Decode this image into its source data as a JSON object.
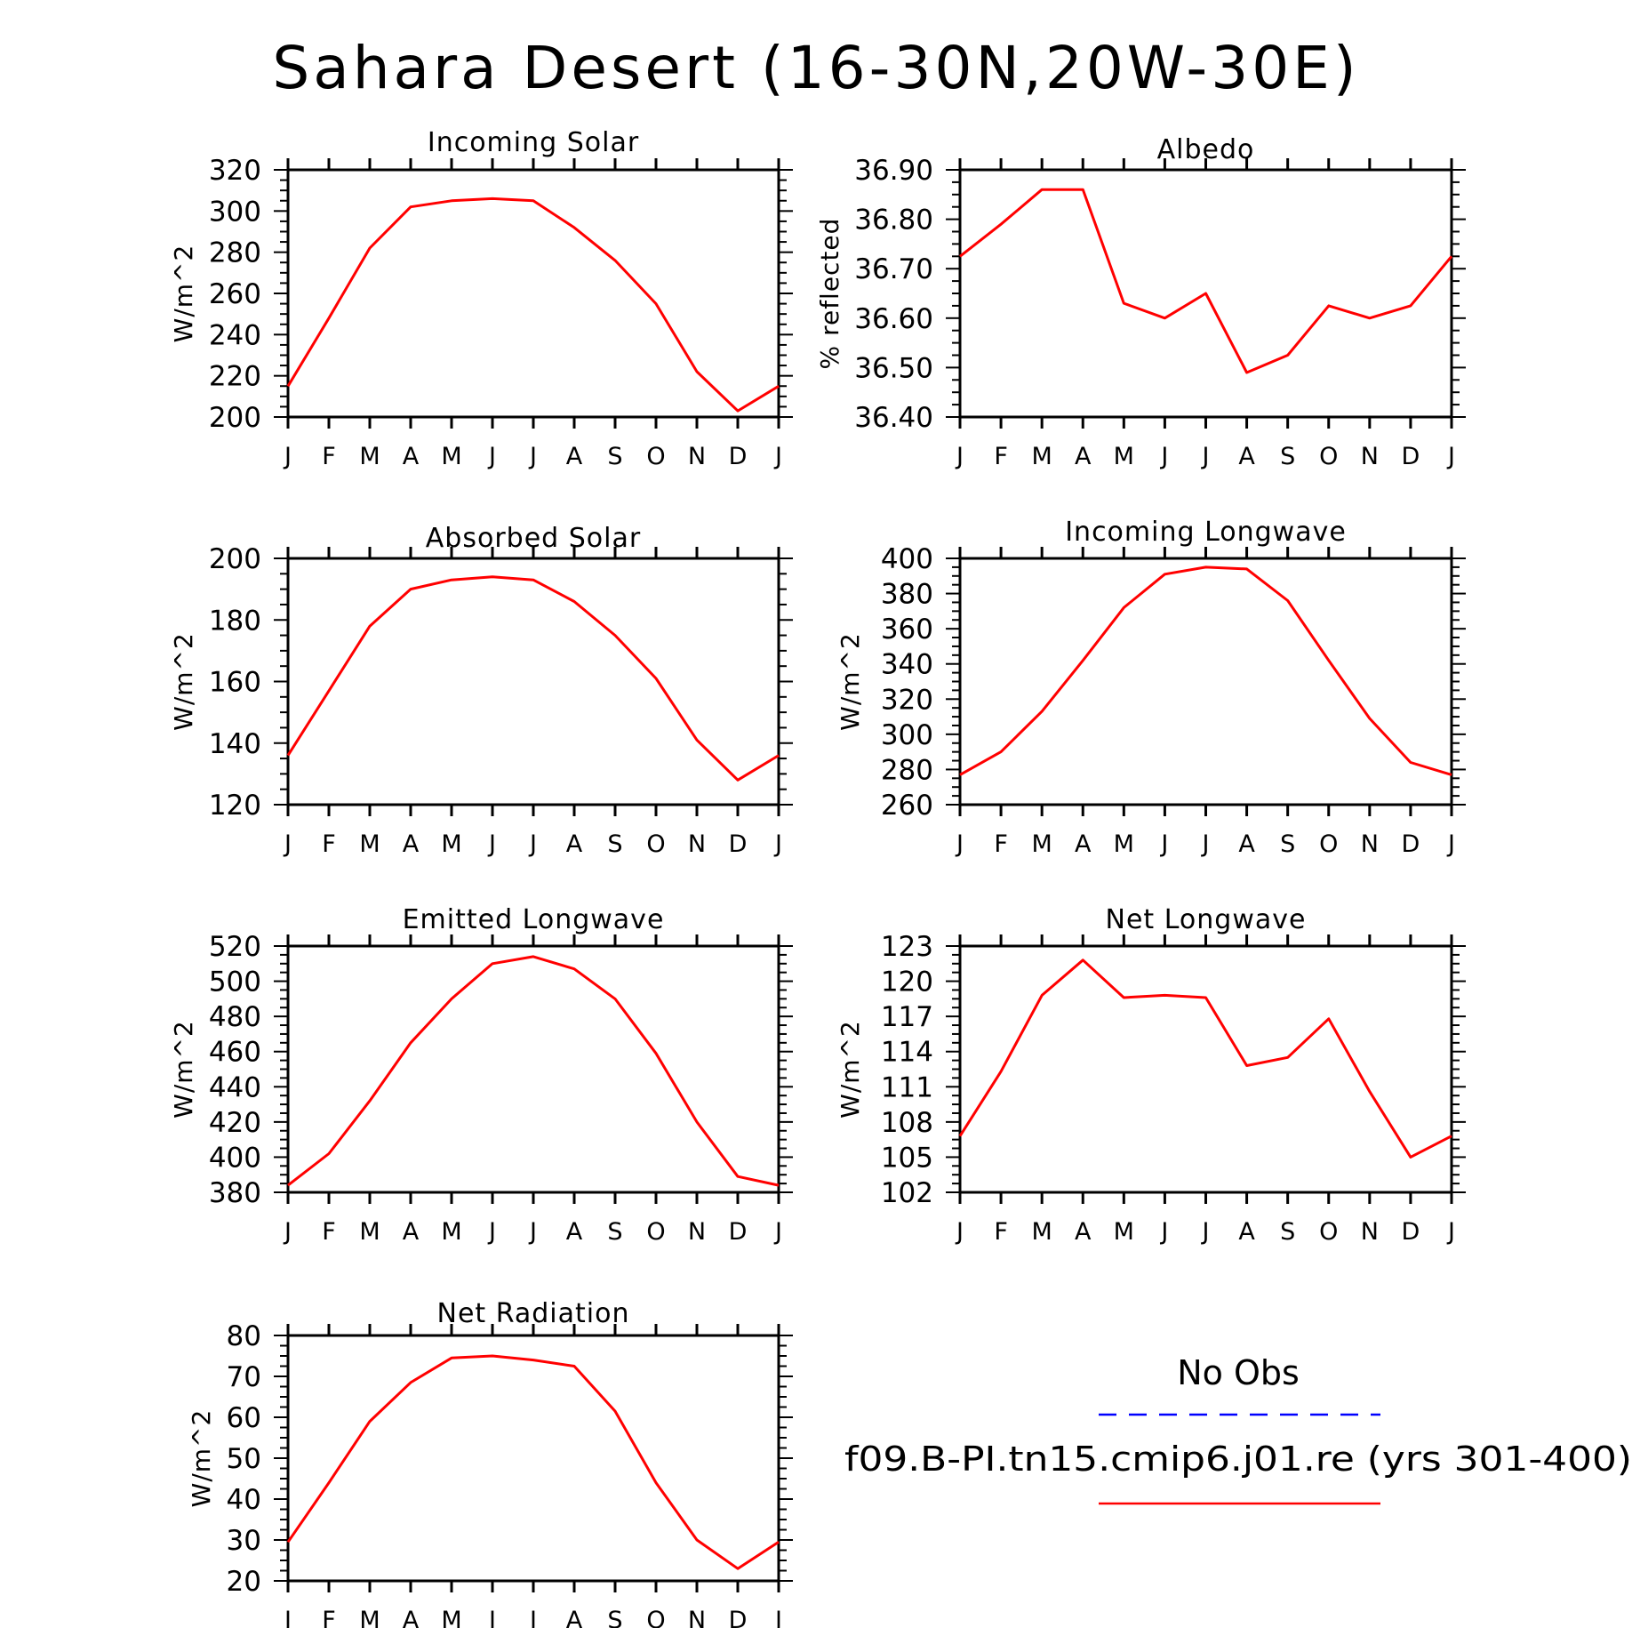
{
  "title": "Sahara Desert (16-30N,20W-30E)",
  "colors": {
    "model": "#ff0000",
    "obs": "#0000ff"
  },
  "months": [
    "J",
    "F",
    "M",
    "A",
    "M",
    "J",
    "J",
    "A",
    "S",
    "O",
    "N",
    "D",
    "J"
  ],
  "legend": {
    "obs_label": "No Obs",
    "model_label": "f09.B-PI.tn15.cmip6.j01.re (yrs 301-400)"
  },
  "chart_data": [
    {
      "type": "line",
      "title": "Incoming Solar",
      "ylabel": "W/m^2",
      "ylim": [
        200,
        320
      ],
      "yticks": [
        "200",
        "220",
        "240",
        "260",
        "280",
        "300",
        "320"
      ],
      "series": [
        {
          "values": [
            215,
            248,
            282,
            302,
            305,
            306,
            305,
            292,
            276,
            255,
            222,
            203,
            215
          ]
        }
      ]
    },
    {
      "type": "line",
      "title": "Albedo",
      "ylabel": "% reflected",
      "ylim": [
        36.4,
        36.9
      ],
      "yticks": [
        "36.40",
        "36.50",
        "36.60",
        "36.70",
        "36.80",
        "36.90"
      ],
      "series": [
        {
          "values": [
            36.725,
            36.79,
            36.86,
            36.86,
            36.63,
            36.6,
            36.65,
            36.49,
            36.525,
            36.625,
            36.6,
            36.625,
            36.725
          ]
        }
      ]
    },
    {
      "type": "line",
      "title": "Absorbed Solar",
      "ylabel": "W/m^2",
      "ylim": [
        120,
        200
      ],
      "yticks": [
        "120",
        "140",
        "160",
        "180",
        "200"
      ],
      "series": [
        {
          "values": [
            136,
            157,
            178,
            190,
            193,
            194,
            193,
            186,
            175,
            161,
            141,
            128,
            136
          ]
        }
      ]
    },
    {
      "type": "line",
      "title": "Incoming Longwave",
      "ylabel": "W/m^2",
      "ylim": [
        260,
        400
      ],
      "yticks": [
        "260",
        "280",
        "300",
        "320",
        "340",
        "360",
        "380",
        "400"
      ],
      "series": [
        {
          "values": [
            277,
            290,
            313,
            342,
            372,
            391,
            395,
            394,
            376,
            342,
            309,
            284,
            277
          ]
        }
      ]
    },
    {
      "type": "line",
      "title": "Emitted Longwave",
      "ylabel": "W/m^2",
      "ylim": [
        380,
        520
      ],
      "yticks": [
        "380",
        "400",
        "420",
        "440",
        "460",
        "480",
        "500",
        "520"
      ],
      "series": [
        {
          "values": [
            384,
            402,
            432,
            465,
            490,
            510,
            514,
            507,
            490,
            459,
            420,
            389,
            384
          ]
        }
      ]
    },
    {
      "type": "line",
      "title": "Net Longwave",
      "ylabel": "W/m^2",
      "ylim": [
        102,
        123
      ],
      "yticks": [
        "102",
        "105",
        "108",
        "111",
        "114",
        "117",
        "120",
        "123"
      ],
      "series": [
        {
          "values": [
            106.8,
            112.3,
            118.8,
            121.8,
            118.6,
            118.8,
            118.6,
            112.8,
            113.5,
            116.8,
            110.6,
            105.0,
            106.8
          ]
        }
      ]
    },
    {
      "type": "line",
      "title": "Net Radiation",
      "ylabel": "W/m^2",
      "ylim": [
        20,
        80
      ],
      "yticks": [
        "20",
        "30",
        "40",
        "50",
        "60",
        "70",
        "80"
      ],
      "series": [
        {
          "values": [
            29.5,
            44,
            59,
            68.5,
            74.5,
            75,
            74,
            72.5,
            61.5,
            44,
            30,
            23,
            29.5
          ]
        }
      ]
    }
  ]
}
